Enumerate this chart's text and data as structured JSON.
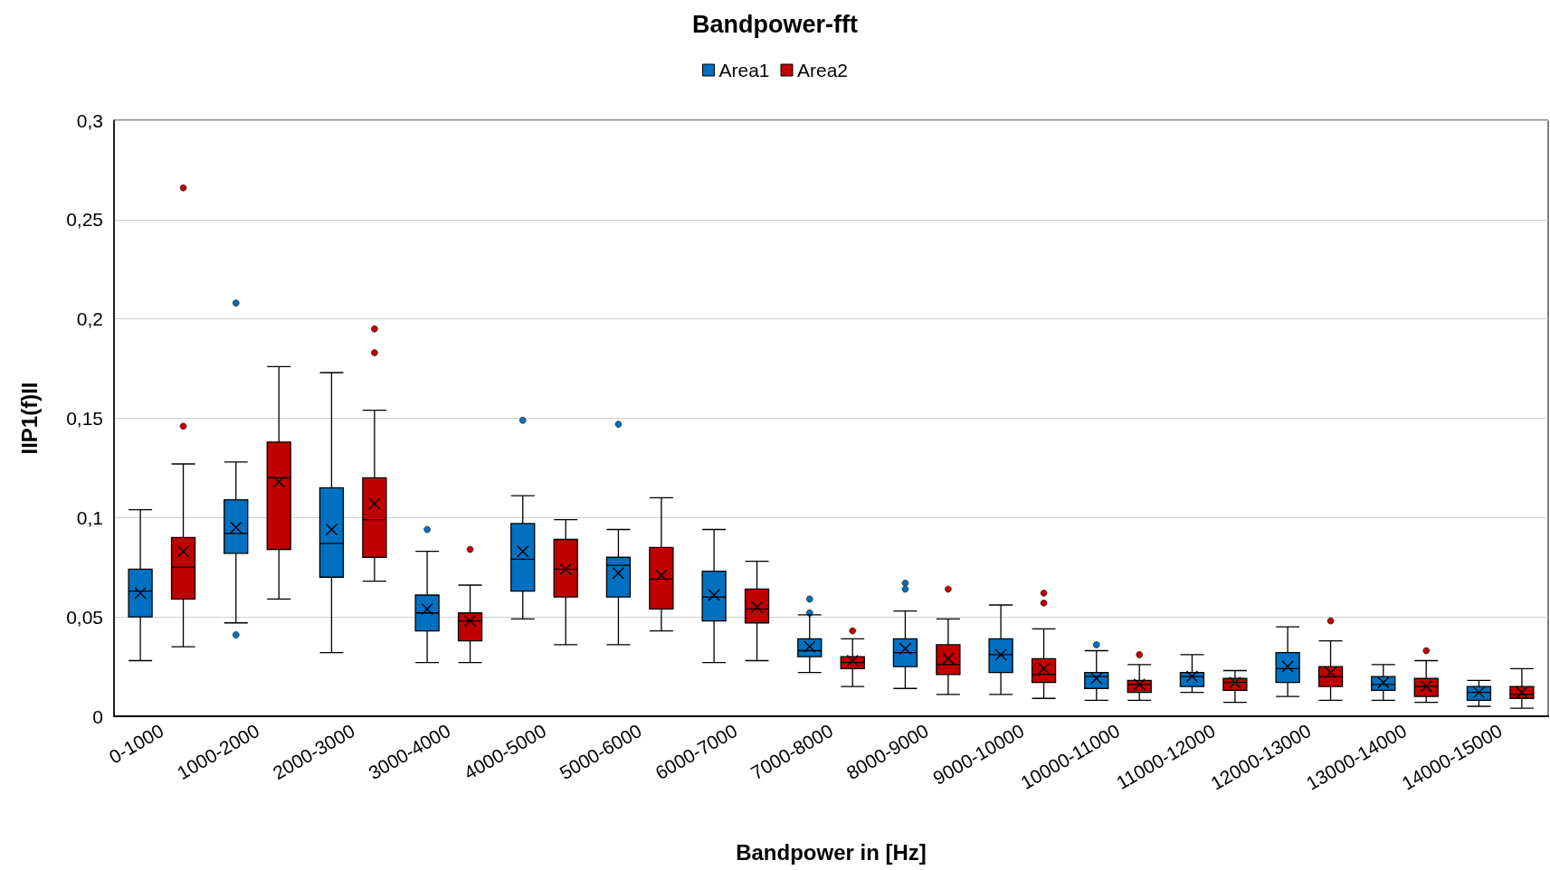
{
  "chart_data": {
    "type": "box",
    "title": "Bandpower-fft",
    "xlabel": "Bandpower in [Hz]",
    "ylabel": "IIP1(f)II",
    "categories": [
      "0-1000",
      "1000-2000",
      "2000-3000",
      "3000-4000",
      "4000-5000",
      "5000-6000",
      "6000-7000",
      "7000-8000",
      "8000-9000",
      "9000-10000",
      "10000-11000",
      "11000-12000",
      "12000-13000",
      "13000-14000",
      "14000-15000"
    ],
    "series": [
      {
        "name": "Area1",
        "color": "#0070c0",
        "boxes": [
          {
            "low": 0.028,
            "q1": 0.05,
            "median": 0.063,
            "q3": 0.074,
            "high": 0.104,
            "mean": 0.062
          },
          {
            "low": 0.047,
            "q1": 0.082,
            "median": 0.092,
            "q3": 0.109,
            "high": 0.128,
            "mean": 0.095,
            "outliers": [
              0.208,
              0.041
            ]
          },
          {
            "low": 0.032,
            "q1": 0.07,
            "median": 0.087,
            "q3": 0.115,
            "high": 0.173,
            "mean": 0.094
          },
          {
            "low": 0.027,
            "q1": 0.043,
            "median": 0.052,
            "q3": 0.061,
            "high": 0.083,
            "mean": 0.054,
            "outliers": [
              0.094
            ]
          },
          {
            "low": 0.049,
            "q1": 0.063,
            "median": 0.079,
            "q3": 0.097,
            "high": 0.111,
            "mean": 0.083,
            "outliers": [
              0.149
            ]
          },
          {
            "low": 0.036,
            "q1": 0.06,
            "median": 0.076,
            "q3": 0.08,
            "high": 0.094,
            "mean": 0.072,
            "outliers": [
              0.147
            ]
          },
          {
            "low": 0.027,
            "q1": 0.048,
            "median": 0.06,
            "q3": 0.073,
            "high": 0.094,
            "mean": 0.061
          },
          {
            "low": 0.022,
            "q1": 0.03,
            "median": 0.033,
            "q3": 0.039,
            "high": 0.051,
            "mean": 0.035,
            "outliers": [
              0.059,
              0.052
            ]
          },
          {
            "low": 0.014,
            "q1": 0.025,
            "median": 0.032,
            "q3": 0.039,
            "high": 0.053,
            "mean": 0.034,
            "outliers": [
              0.067,
              0.064
            ]
          },
          {
            "low": 0.011,
            "q1": 0.022,
            "median": 0.031,
            "q3": 0.039,
            "high": 0.056,
            "mean": 0.031
          },
          {
            "low": 0.008,
            "q1": 0.014,
            "median": 0.02,
            "q3": 0.022,
            "high": 0.033,
            "mean": 0.019,
            "outliers": [
              0.036
            ]
          },
          {
            "low": 0.012,
            "q1": 0.015,
            "median": 0.02,
            "q3": 0.022,
            "high": 0.031,
            "mean": 0.02
          },
          {
            "low": 0.01,
            "q1": 0.017,
            "median": 0.024,
            "q3": 0.032,
            "high": 0.045,
            "mean": 0.025
          },
          {
            "low": 0.008,
            "q1": 0.013,
            "median": 0.016,
            "q3": 0.02,
            "high": 0.026,
            "mean": 0.017
          },
          {
            "low": 0.005,
            "q1": 0.008,
            "median": 0.012,
            "q3": 0.015,
            "high": 0.018,
            "mean": 0.012
          }
        ]
      },
      {
        "name": "Area2",
        "color": "#c00000",
        "boxes": [
          {
            "low": 0.035,
            "q1": 0.059,
            "median": 0.075,
            "q3": 0.09,
            "high": 0.127,
            "mean": 0.083,
            "outliers": [
              0.266,
              0.146
            ]
          },
          {
            "low": 0.059,
            "q1": 0.084,
            "median": 0.12,
            "q3": 0.138,
            "high": 0.176,
            "mean": 0.118
          },
          {
            "low": 0.068,
            "q1": 0.08,
            "median": 0.099,
            "q3": 0.12,
            "high": 0.154,
            "mean": 0.107,
            "outliers": [
              0.195,
              0.183
            ]
          },
          {
            "low": 0.027,
            "q1": 0.038,
            "median": 0.048,
            "q3": 0.052,
            "high": 0.066,
            "mean": 0.048,
            "outliers": [
              0.084
            ]
          },
          {
            "low": 0.036,
            "q1": 0.06,
            "median": 0.074,
            "q3": 0.089,
            "high": 0.099,
            "mean": 0.074
          },
          {
            "low": 0.043,
            "q1": 0.054,
            "median": 0.069,
            "q3": 0.085,
            "high": 0.11,
            "mean": 0.071
          },
          {
            "low": 0.028,
            "q1": 0.047,
            "median": 0.054,
            "q3": 0.064,
            "high": 0.078,
            "mean": 0.055
          },
          {
            "low": 0.015,
            "q1": 0.024,
            "median": 0.027,
            "q3": 0.03,
            "high": 0.039,
            "mean": 0.028,
            "outliers": [
              0.043
            ]
          },
          {
            "low": 0.011,
            "q1": 0.021,
            "median": 0.026,
            "q3": 0.036,
            "high": 0.049,
            "mean": 0.029,
            "outliers": [
              0.064
            ]
          },
          {
            "low": 0.009,
            "q1": 0.017,
            "median": 0.021,
            "q3": 0.029,
            "high": 0.044,
            "mean": 0.024,
            "outliers": [
              0.062,
              0.057
            ]
          },
          {
            "low": 0.008,
            "q1": 0.012,
            "median": 0.016,
            "q3": 0.018,
            "high": 0.026,
            "mean": 0.016,
            "outliers": [
              0.031
            ]
          },
          {
            "low": 0.007,
            "q1": 0.013,
            "median": 0.017,
            "q3": 0.019,
            "high": 0.023,
            "mean": 0.017
          },
          {
            "low": 0.008,
            "q1": 0.015,
            "median": 0.02,
            "q3": 0.025,
            "high": 0.038,
            "mean": 0.022,
            "outliers": [
              0.048
            ]
          },
          {
            "low": 0.007,
            "q1": 0.01,
            "median": 0.015,
            "q3": 0.019,
            "high": 0.028,
            "mean": 0.015,
            "outliers": [
              0.033
            ]
          },
          {
            "low": 0.004,
            "q1": 0.009,
            "median": 0.011,
            "q3": 0.015,
            "high": 0.024,
            "mean": 0.012
          }
        ]
      }
    ],
    "ylim": [
      0,
      0.3
    ],
    "yticks": [
      0,
      {
        "value": 0.05,
        "label": "0,05"
      },
      {
        "value": 0.1,
        "label": "0,1"
      },
      {
        "value": 0.15,
        "label": "0,15"
      },
      {
        "value": 0.2,
        "label": "0,2"
      },
      {
        "value": 0.25,
        "label": "0,25"
      },
      {
        "value": 0.3,
        "label": "0,3"
      }
    ],
    "grid": true,
    "legend": "top"
  }
}
